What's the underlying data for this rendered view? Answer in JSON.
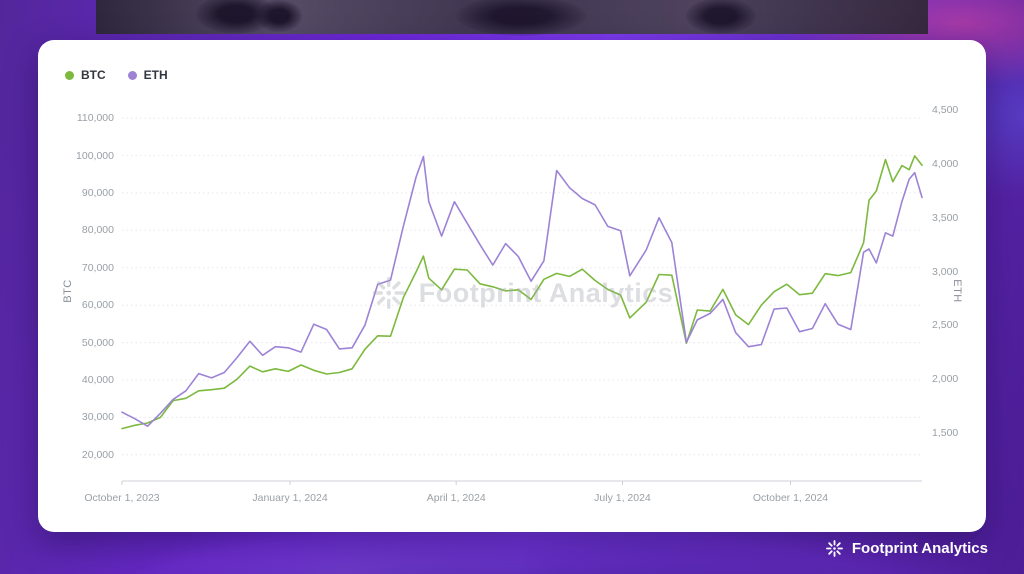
{
  "legend": {
    "items": [
      {
        "label": "BTC",
        "color": "#7cb93e"
      },
      {
        "label": "ETH",
        "color": "#9d83d6"
      }
    ]
  },
  "watermark": {
    "text": "Footprint Analytics"
  },
  "footer": {
    "brand": "Footprint Analytics"
  },
  "chart_data": {
    "type": "line",
    "title": "",
    "legend_position": "top-left",
    "grid": "dotted-horizontal",
    "x_tick_labels": [
      "October 1, 2023",
      "January 1, 2024",
      "April 1, 2024",
      "July 1, 2024",
      "October 1, 2024"
    ],
    "x_tick_dates": [
      "2023-10-01",
      "2024-01-01",
      "2024-04-01",
      "2024-07-01",
      "2024-10-01"
    ],
    "left_axis": {
      "label": "BTC",
      "min": 13000,
      "max": 113500,
      "ticks": [
        20000,
        30000,
        40000,
        50000,
        60000,
        70000,
        80000,
        90000,
        100000,
        110000
      ]
    },
    "right_axis": {
      "label": "ETH",
      "min": 1050,
      "max": 4550,
      "ticks": [
        1500,
        2000,
        2500,
        3000,
        3500,
        4000,
        4500
      ]
    },
    "x": [
      "2023-10-01",
      "2023-10-08",
      "2023-10-15",
      "2023-10-22",
      "2023-10-29",
      "2023-11-05",
      "2023-11-12",
      "2023-11-19",
      "2023-11-26",
      "2023-12-03",
      "2023-12-10",
      "2023-12-17",
      "2023-12-24",
      "2023-12-31",
      "2024-01-07",
      "2024-01-14",
      "2024-01-21",
      "2024-01-28",
      "2024-02-04",
      "2024-02-11",
      "2024-02-18",
      "2024-02-25",
      "2024-03-03",
      "2024-03-10",
      "2024-03-14",
      "2024-03-17",
      "2024-03-24",
      "2024-03-31",
      "2024-04-07",
      "2024-04-14",
      "2024-04-21",
      "2024-04-28",
      "2024-05-05",
      "2024-05-12",
      "2024-05-19",
      "2024-05-26",
      "2024-06-02",
      "2024-06-09",
      "2024-06-16",
      "2024-06-23",
      "2024-06-30",
      "2024-07-05",
      "2024-07-14",
      "2024-07-21",
      "2024-07-28",
      "2024-08-05",
      "2024-08-11",
      "2024-08-18",
      "2024-08-25",
      "2024-09-01",
      "2024-09-08",
      "2024-09-15",
      "2024-09-22",
      "2024-09-29",
      "2024-10-06",
      "2024-10-13",
      "2024-10-20",
      "2024-10-27",
      "2024-11-03",
      "2024-11-10",
      "2024-11-13",
      "2024-11-17",
      "2024-11-22",
      "2024-11-26",
      "2024-12-01",
      "2024-12-05",
      "2024-12-08",
      "2024-12-12"
    ],
    "series": [
      {
        "name": "BTC",
        "axis": "left",
        "color": "#7cb93e",
        "values": [
          27000,
          27900,
          28500,
          30000,
          34500,
          35100,
          37100,
          37400,
          37800,
          40200,
          43700,
          42200,
          43000,
          42300,
          44000,
          42600,
          41600,
          42000,
          43000,
          48200,
          51800,
          51700,
          62000,
          68900,
          73100,
          67200,
          64100,
          69600,
          69400,
          65700,
          64900,
          63800,
          64100,
          61500,
          66900,
          68500,
          67700,
          69600,
          66600,
          64200,
          62700,
          56600,
          60800,
          68200,
          68000,
          49800,
          58700,
          58400,
          64200,
          57400,
          54800,
          60000,
          63600,
          65600,
          62800,
          63200,
          68400,
          67900,
          68700,
          76700,
          88000,
          90500,
          98900,
          93000,
          97300,
          96200,
          99900,
          97400
        ]
      },
      {
        "name": "ETH",
        "axis": "right",
        "color": "#9d83d6",
        "values": [
          1690,
          1630,
          1560,
          1680,
          1810,
          1890,
          2050,
          2010,
          2060,
          2200,
          2350,
          2220,
          2300,
          2290,
          2250,
          2510,
          2460,
          2280,
          2290,
          2500,
          2880,
          2920,
          3420,
          3880,
          4070,
          3650,
          3330,
          3650,
          3450,
          3250,
          3060,
          3260,
          3140,
          2910,
          3100,
          3940,
          3780,
          3680,
          3620,
          3420,
          3380,
          2960,
          3200,
          3500,
          3270,
          2340,
          2550,
          2610,
          2740,
          2430,
          2300,
          2320,
          2650,
          2660,
          2440,
          2470,
          2700,
          2510,
          2460,
          3180,
          3210,
          3080,
          3360,
          3330,
          3650,
          3860,
          3920,
          3690
        ]
      }
    ]
  }
}
